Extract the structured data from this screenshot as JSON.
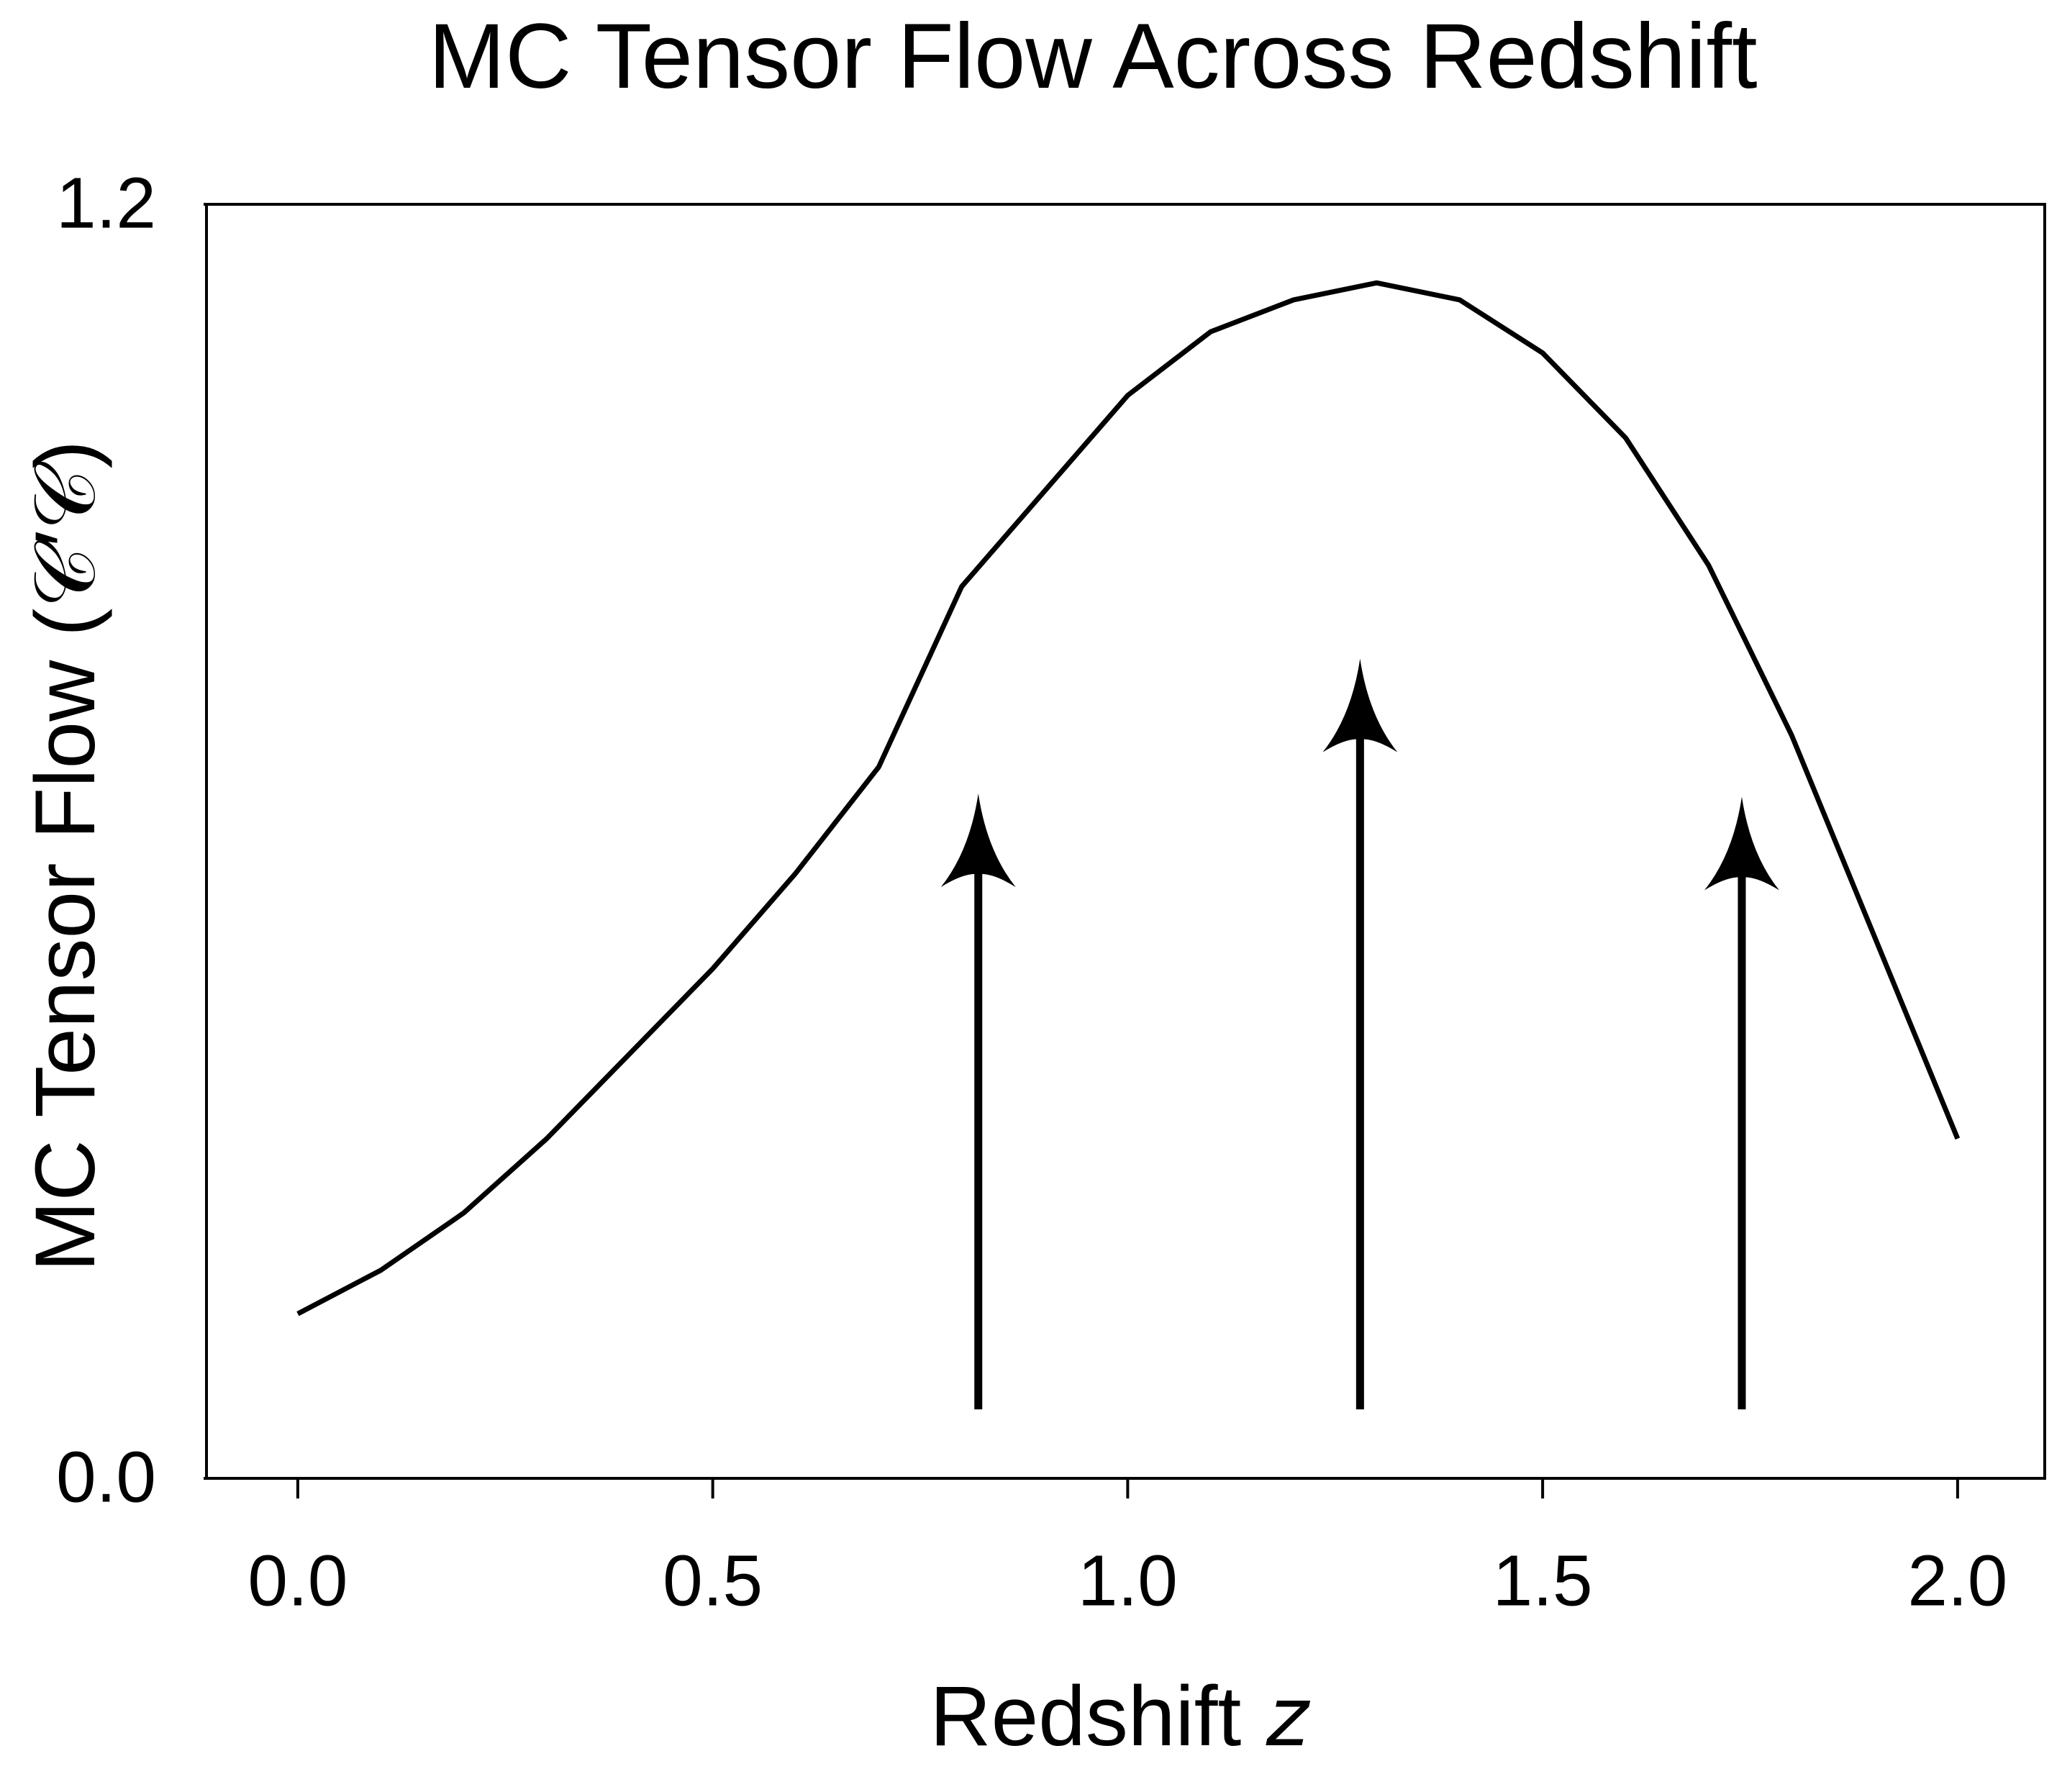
{
  "chart_data": {
    "type": "line",
    "title": "MC Tensor Flow Across Redshift",
    "xlabel": "Redshift 𝑧",
    "ylabel": "MC Tensor Flow (𝒞′𝒞)",
    "x": [
      0.0,
      0.1,
      0.2,
      0.3,
      0.4,
      0.5,
      0.6,
      0.7,
      0.8,
      0.9,
      1.0,
      1.1,
      1.2,
      1.3,
      1.4,
      1.5,
      1.6,
      1.7,
      1.8,
      1.9,
      2.0
    ],
    "series": [
      {
        "color": "#000000",
        "values": [
          0.155,
          0.196,
          0.25,
          0.32,
          0.4,
          0.48,
          0.57,
          0.67,
          0.84,
          0.93,
          1.02,
          1.08,
          1.11,
          1.126,
          1.11,
          1.06,
          0.98,
          0.86,
          0.7,
          0.51,
          0.32
        ]
      }
    ],
    "arrows": [
      {
        "x": 0.82,
        "y0": 0.065,
        "y1": 0.645
      },
      {
        "x": 1.28,
        "y0": 0.065,
        "y1": 0.772
      },
      {
        "x": 1.74,
        "y0": 0.065,
        "y1": 0.642
      }
    ],
    "xlim": [
      -0.11,
      2.105
    ],
    "ylim": [
      0.0,
      1.2
    ],
    "xticks": [
      {
        "value": 0,
        "label": "0.0"
      },
      0.5,
      {
        "value": 1,
        "label": "1.0"
      },
      1.5,
      {
        "value": 2,
        "label": "2.0"
      }
    ],
    "yticks": [
      {
        "value": 0,
        "label": "0.0"
      },
      1.2
    ]
  }
}
